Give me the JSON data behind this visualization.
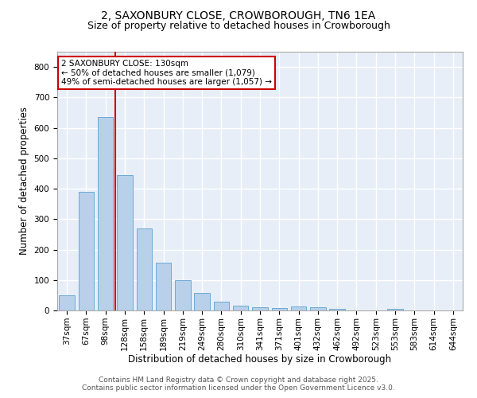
{
  "title1": "2, SAXONBURY CLOSE, CROWBOROUGH, TN6 1EA",
  "title2": "Size of property relative to detached houses in Crowborough",
  "xlabel": "Distribution of detached houses by size in Crowborough",
  "ylabel": "Number of detached properties",
  "categories": [
    "37sqm",
    "67sqm",
    "98sqm",
    "128sqm",
    "158sqm",
    "189sqm",
    "219sqm",
    "249sqm",
    "280sqm",
    "310sqm",
    "341sqm",
    "371sqm",
    "401sqm",
    "432sqm",
    "462sqm",
    "492sqm",
    "523sqm",
    "553sqm",
    "583sqm",
    "614sqm",
    "644sqm"
  ],
  "values": [
    50,
    390,
    635,
    445,
    270,
    158,
    100,
    57,
    30,
    17,
    10,
    7,
    14,
    10,
    5,
    0,
    0,
    5,
    0,
    0,
    0
  ],
  "bar_color": "#b8d0ea",
  "bar_edgecolor": "#6aaad4",
  "redline_index": 2.5,
  "ylim": [
    0,
    850
  ],
  "yticks": [
    0,
    100,
    200,
    300,
    400,
    500,
    600,
    700,
    800
  ],
  "annotation_text": "2 SAXONBURY CLOSE: 130sqm\n← 50% of detached houses are smaller (1,079)\n49% of semi-detached houses are larger (1,057) →",
  "annotation_box_color": "#ffffff",
  "annotation_box_edgecolor": "#cc0000",
  "footer1": "Contains HM Land Registry data © Crown copyright and database right 2025.",
  "footer2": "Contains public sector information licensed under the Open Government Licence v3.0.",
  "background_color": "#e8eef8",
  "grid_color": "#ffffff",
  "title_fontsize": 10,
  "subtitle_fontsize": 9,
  "axis_label_fontsize": 8.5,
  "tick_fontsize": 7.5,
  "footer_fontsize": 6.5
}
